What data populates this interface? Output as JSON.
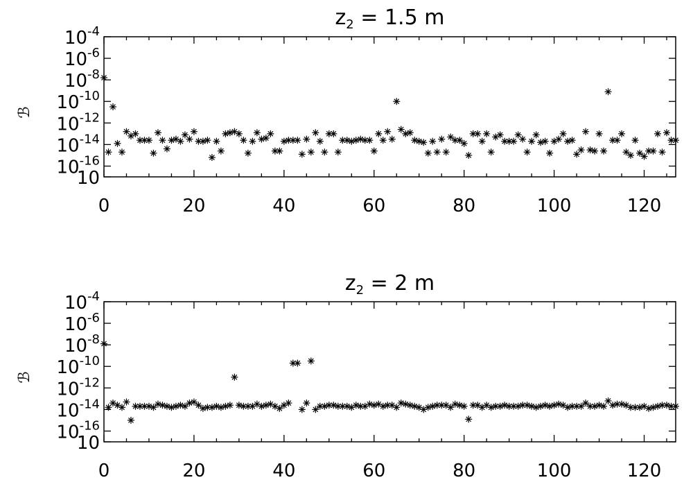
{
  "chart_data": [
    {
      "type": "scatter",
      "title": {
        "prefix": "z",
        "sub": "2",
        "rest": " = 1.5 m"
      },
      "ylabel": "ℬ",
      "xlabel": "",
      "xlim": [
        0,
        127
      ],
      "ylim_log10": [
        -17,
        -4
      ],
      "yscale": "log",
      "x_ticks": [
        "0",
        "20",
        "40",
        "60",
        "80",
        "100",
        "120"
      ],
      "y_ticks": [
        {
          "base": "10",
          "exp": "-4"
        },
        {
          "base": "10",
          "exp": "-6"
        },
        {
          "base": "10",
          "exp": "-8"
        },
        {
          "base": "10",
          "exp": "-10"
        },
        {
          "base": "10",
          "exp": "-12"
        },
        {
          "base": "10",
          "exp": "-14"
        },
        {
          "base": "10",
          "exp": "-16"
        },
        {
          "base": "10",
          "exp": ""
        }
      ],
      "marker": "asterisk",
      "log10_y": [
        -7.8,
        -14.7,
        -10.5,
        -13.9,
        -14.7,
        -12.8,
        -13.2,
        -13.0,
        -13.6,
        -13.6,
        -13.6,
        -14.8,
        -12.9,
        -13.6,
        -14.4,
        -13.6,
        -13.5,
        -13.7,
        -13.1,
        -13.5,
        -12.8,
        -13.7,
        -13.7,
        -13.6,
        -15.2,
        -13.7,
        -14.6,
        -13.0,
        -12.9,
        -12.8,
        -13.0,
        -13.6,
        -14.8,
        -13.7,
        -12.9,
        -13.5,
        -13.4,
        -13.0,
        -14.6,
        -14.6,
        -13.7,
        -13.6,
        -13.6,
        -13.6,
        -14.9,
        -13.5,
        -14.7,
        -12.9,
        -13.7,
        -14.7,
        -13.0,
        -13.0,
        -14.7,
        -13.6,
        -13.6,
        -13.7,
        -13.6,
        -13.5,
        -13.6,
        -13.6,
        -14.6,
        -13.0,
        -13.6,
        -12.8,
        -13.5,
        -10.0,
        -12.6,
        -13.0,
        -12.9,
        -13.6,
        -13.7,
        -13.8,
        -14.8,
        -13.7,
        -14.7,
        -13.5,
        -14.7,
        -13.3,
        -13.6,
        -13.6,
        -13.9,
        -15.0,
        -13.0,
        -13.0,
        -13.7,
        -13.0,
        -14.7,
        -13.3,
        -13.1,
        -13.7,
        -13.7,
        -13.7,
        -13.1,
        -13.5,
        -14.7,
        -13.7,
        -13.1,
        -13.8,
        -13.7,
        -14.8,
        -13.7,
        -13.5,
        -13.0,
        -13.7,
        -13.6,
        -14.9,
        -14.5,
        -12.8,
        -14.5,
        -14.6,
        -13.0,
        -14.6,
        -9.1,
        -13.6,
        -13.6,
        -13.0,
        -14.7,
        -15.0,
        -13.6,
        -14.8,
        -15.1,
        -14.6,
        -14.6,
        -13.0,
        -14.7,
        -12.9,
        -13.6,
        -13.6
      ]
    },
    {
      "type": "scatter",
      "title": {
        "prefix": "z",
        "sub": "2",
        "rest": " = 2 m"
      },
      "ylabel": "ℬ",
      "xlabel": "",
      "xlim": [
        0,
        127
      ],
      "ylim_log10": [
        -17,
        -4
      ],
      "yscale": "log",
      "x_ticks": [
        "0",
        "20",
        "40",
        "60",
        "80",
        "100",
        "120"
      ],
      "y_ticks": [
        {
          "base": "10",
          "exp": "-4"
        },
        {
          "base": "10",
          "exp": "-6"
        },
        {
          "base": "10",
          "exp": "-8"
        },
        {
          "base": "10",
          "exp": "-10"
        },
        {
          "base": "10",
          "exp": "-12"
        },
        {
          "base": "10",
          "exp": "-14"
        },
        {
          "base": "10",
          "exp": "-16"
        },
        {
          "base": "10",
          "exp": ""
        }
      ],
      "marker": "asterisk",
      "log10_y": [
        -7.9,
        -13.8,
        -13.4,
        -13.6,
        -13.8,
        -13.3,
        -15.0,
        -13.7,
        -13.7,
        -13.7,
        -13.7,
        -13.8,
        -13.5,
        -13.6,
        -13.7,
        -13.8,
        -13.7,
        -13.6,
        -13.7,
        -13.4,
        -13.3,
        -13.6,
        -13.9,
        -13.8,
        -13.8,
        -13.7,
        -13.8,
        -13.7,
        -13.6,
        -11.0,
        -13.6,
        -13.7,
        -13.7,
        -13.7,
        -13.5,
        -13.7,
        -13.6,
        -13.5,
        -13.7,
        -13.9,
        -13.6,
        -13.4,
        -9.7,
        -9.7,
        -14.0,
        -13.4,
        -9.5,
        -14.0,
        -13.7,
        -13.7,
        -13.6,
        -13.6,
        -13.7,
        -13.7,
        -13.7,
        -13.8,
        -13.6,
        -13.7,
        -13.7,
        -13.5,
        -13.6,
        -13.5,
        -13.7,
        -13.6,
        -13.6,
        -13.8,
        -13.4,
        -13.5,
        -13.6,
        -13.7,
        -13.8,
        -14.0,
        -13.8,
        -13.7,
        -13.6,
        -13.6,
        -13.6,
        -13.8,
        -13.5,
        -13.6,
        -13.7,
        -14.9,
        -13.6,
        -13.6,
        -13.8,
        -13.6,
        -13.8,
        -13.7,
        -13.7,
        -13.6,
        -13.7,
        -13.7,
        -13.7,
        -13.6,
        -13.6,
        -13.7,
        -13.8,
        -13.7,
        -13.6,
        -13.7,
        -13.6,
        -13.5,
        -13.6,
        -13.8,
        -13.7,
        -13.7,
        -13.7,
        -13.4,
        -13.7,
        -13.7,
        -13.6,
        -13.7,
        -13.2,
        -13.6,
        -13.5,
        -13.5,
        -13.6,
        -13.8,
        -13.8,
        -13.8,
        -13.7,
        -13.9,
        -13.8,
        -13.7,
        -13.6,
        -13.6,
        -13.7,
        -13.7
      ]
    }
  ]
}
